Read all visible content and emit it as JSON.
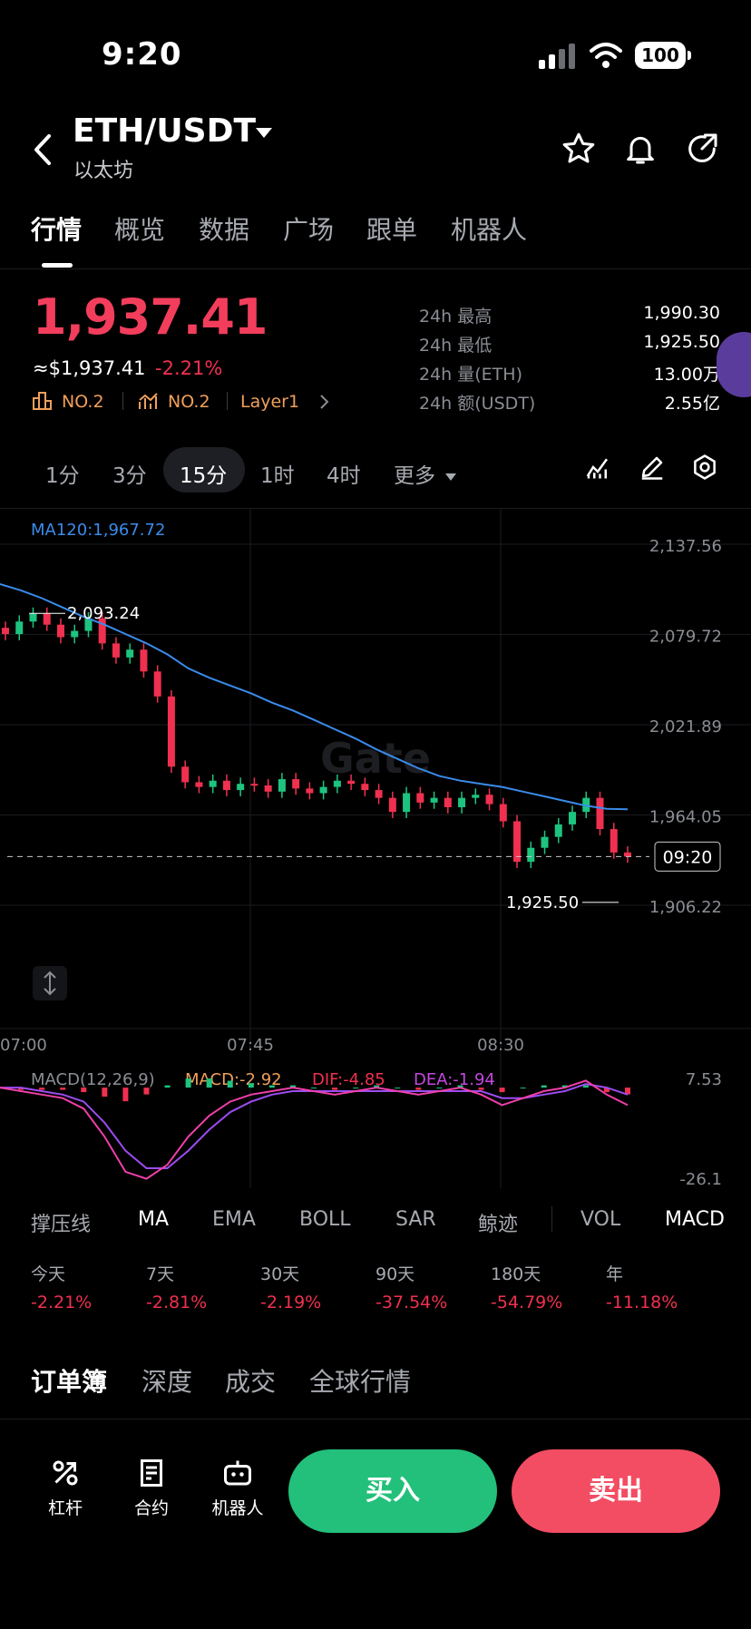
{
  "status": {
    "time": "9:20",
    "battery": "100"
  },
  "header": {
    "pair": "ETH/USDT",
    "name": "以太坊"
  },
  "tabs": [
    "行情",
    "概览",
    "数据",
    "广场",
    "跟单",
    "机器人"
  ],
  "price": {
    "last": "1,937.41",
    "usd": "≈$1,937.41",
    "change": "-2.21%",
    "rank1": "NO.2",
    "rank2": "NO.2",
    "tag": "Layer1"
  },
  "stats": [
    {
      "label": "24h  最高",
      "value": "1,990.30"
    },
    {
      "label": "24h  最低",
      "value": "1,925.50"
    },
    {
      "label": "24h  量(ETH)",
      "value": "13.00万"
    },
    {
      "label": "24h  额(USDT)",
      "value": "2.55亿"
    }
  ],
  "intervals": [
    "1分",
    "3分",
    "15分",
    "1时",
    "4时",
    "更多"
  ],
  "chart_data": {
    "type": "candlestick",
    "ma_label": "MA120:1,967.72",
    "y_ticks": [
      "2,137.56",
      "2,079.72",
      "2,021.89",
      "1,964.05",
      "1,906.22"
    ],
    "ylim": [
      1906.22,
      2137.56
    ],
    "x_ticks": [
      "07:00",
      "07:45",
      "08:30"
    ],
    "high_label": "2,093.24",
    "low_label": "1,925.50",
    "current_time": "09:20",
    "last_price": 1937.41,
    "ma120": [
      2112,
      2108,
      2103,
      2097,
      2091,
      2086,
      2080,
      2074,
      2067,
      2058,
      2052,
      2047,
      2042,
      2036,
      2031,
      2025,
      2019,
      2013,
      2006,
      2000,
      1994,
      1989,
      1986,
      1984,
      1982,
      1979,
      1976,
      1973,
      1970,
      1968,
      1967.72
    ],
    "closes": [
      2080,
      2088,
      2093,
      2086,
      2078,
      2082,
      2090,
      2074,
      2065,
      2070,
      2056,
      2040,
      1995,
      1985,
      1982,
      1986,
      1980,
      1984,
      1983,
      1979,
      1987,
      1981,
      1978,
      1982,
      1986,
      1984,
      1980,
      1975,
      1966,
      1978,
      1972,
      1975,
      1969,
      1975,
      1977,
      1971,
      1960,
      1934,
      1943,
      1950,
      1958,
      1966,
      1975,
      1955,
      1940,
      1937.41
    ]
  },
  "macd": {
    "label": "MACD(12,26,9)",
    "macd": "MACD:-2.92",
    "dif": "DIF:-4.85",
    "dea": "DEA:-1.94",
    "y_top": "7.53",
    "y_bottom": "-26.1",
    "dif_values": [
      0,
      -1,
      -2,
      -3,
      -6,
      -14,
      -24,
      -26,
      -22,
      -14,
      -8,
      -4,
      -2,
      -1,
      0,
      -1,
      -2,
      -1,
      0,
      -1,
      -2,
      -1,
      0,
      -2,
      -5,
      -3,
      -1,
      0,
      2,
      -2,
      -5
    ],
    "dea_values": [
      0,
      0,
      -1,
      -2,
      -4,
      -10,
      -18,
      -23,
      -23,
      -18,
      -12,
      -7,
      -4,
      -2,
      -1,
      -1,
      -1,
      -1,
      -1,
      -1,
      -1,
      -1,
      -1,
      -1,
      -3,
      -3,
      -2,
      -1,
      1,
      0,
      -2
    ]
  },
  "indicators": [
    "撑压线",
    "MA",
    "EMA",
    "BOLL",
    "SAR",
    "鲸迹",
    "VOL",
    "MACD"
  ],
  "periods": [
    {
      "label": "今天",
      "value": "-2.21%"
    },
    {
      "label": "7天",
      "value": "-2.81%"
    },
    {
      "label": "30天",
      "value": "-2.19%"
    },
    {
      "label": "90天",
      "value": "-37.54%"
    },
    {
      "label": "180天",
      "value": "-54.79%"
    },
    {
      "label": "年",
      "value": "-11.18%"
    }
  ],
  "book_tabs": [
    "订单簿",
    "深度",
    "成交",
    "全球行情"
  ],
  "bottom_nav": [
    "杠杆",
    "合约",
    "机器人"
  ],
  "actions": {
    "buy": "买入",
    "sell": "卖出"
  },
  "colors": {
    "up": "#1dc47f",
    "down": "#f0304f",
    "ma": "#3b8bea",
    "accent": "#f0a05a"
  }
}
